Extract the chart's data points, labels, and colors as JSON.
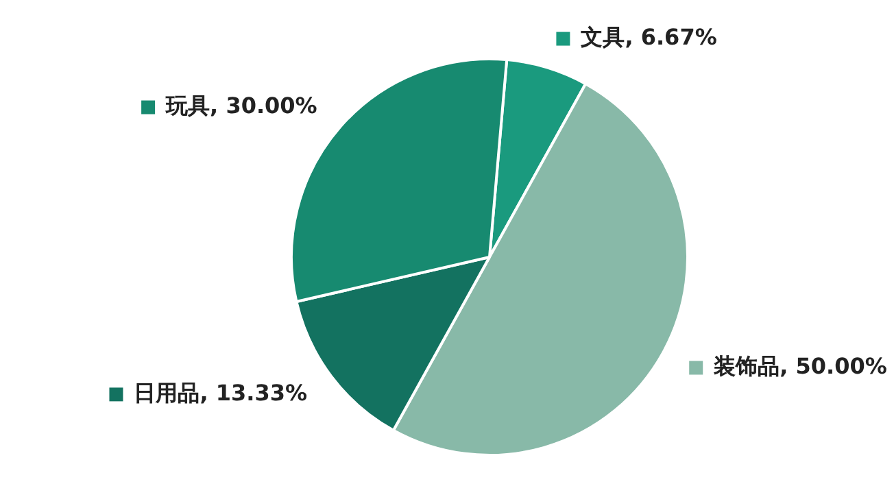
{
  "chart_data": {
    "type": "pie",
    "categories": [
      "文具",
      "装饰品",
      "日用品",
      "玩具"
    ],
    "values": [
      6.67,
      50,
      13.33,
      30
    ],
    "colors": [
      "#1a9a7e",
      "#88b9a8",
      "#137260",
      "#178a70"
    ],
    "value_labels": [
      "6.67%",
      "50.00%",
      "13.33%",
      "30.00%"
    ],
    "legend": "left"
  }
}
